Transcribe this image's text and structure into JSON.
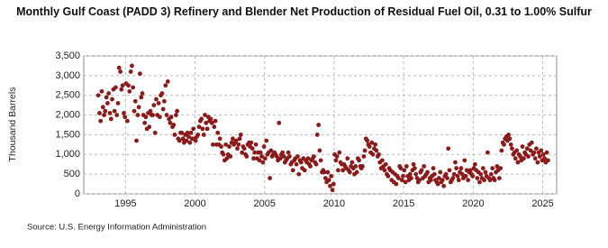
{
  "chart_data": {
    "type": "scatter",
    "title": "Monthly Gulf Coast (PADD 3) Refinery and Blender Net Production of Residual Fuel Oil, 0.31 to 1.00% Sulfur",
    "y_label": "Thousand Barrels",
    "source": "Source: U.S. Energy Information Administration",
    "color": "#8b1a1a",
    "grid": true,
    "xlim": [
      1992,
      2026
    ],
    "ylim": [
      0,
      3500
    ],
    "xticks": [
      1995,
      2000,
      2005,
      2010,
      2015,
      2020,
      2025
    ],
    "yticks": [
      0,
      500,
      {
        "value": 1000,
        "label": "1,000"
      },
      {
        "value": 1500,
        "label": "1,500"
      },
      {
        "value": 2000,
        "label": "2,000"
      },
      {
        "value": 2500,
        "label": "2,500"
      },
      {
        "value": 3000,
        "label": "3,000"
      },
      {
        "value": 3500,
        "label": "3,500"
      }
    ],
    "x": [
      1993.04,
      1993.13,
      1993.21,
      1993.29,
      1993.38,
      1993.46,
      1993.54,
      1993.63,
      1993.71,
      1993.79,
      1993.88,
      1993.96,
      1994.04,
      1994.13,
      1994.21,
      1994.29,
      1994.38,
      1994.46,
      1994.54,
      1994.63,
      1994.71,
      1994.79,
      1994.88,
      1994.96,
      1995.04,
      1995.13,
      1995.21,
      1995.29,
      1995.38,
      1995.46,
      1995.54,
      1995.63,
      1995.71,
      1995.79,
      1995.88,
      1995.96,
      1996.04,
      1996.13,
      1996.21,
      1996.29,
      1996.38,
      1996.46,
      1996.54,
      1996.63,
      1996.71,
      1996.79,
      1996.88,
      1996.96,
      1997.04,
      1997.13,
      1997.21,
      1997.29,
      1997.38,
      1997.46,
      1997.54,
      1997.63,
      1997.71,
      1997.79,
      1997.88,
      1997.96,
      1998.04,
      1998.13,
      1998.21,
      1998.29,
      1998.38,
      1998.46,
      1998.54,
      1998.63,
      1998.71,
      1998.79,
      1998.88,
      1998.96,
      1999.04,
      1999.13,
      1999.21,
      1999.29,
      1999.38,
      1999.46,
      1999.54,
      1999.63,
      1999.71,
      1999.79,
      1999.88,
      1999.96,
      2000.04,
      2000.13,
      2000.21,
      2000.29,
      2000.38,
      2000.46,
      2000.54,
      2000.63,
      2000.71,
      2000.79,
      2000.88,
      2000.96,
      2001.04,
      2001.13,
      2001.21,
      2001.29,
      2001.38,
      2001.46,
      2001.54,
      2001.63,
      2001.71,
      2001.79,
      2001.88,
      2001.96,
      2002.04,
      2002.13,
      2002.21,
      2002.29,
      2002.38,
      2002.46,
      2002.54,
      2002.63,
      2002.71,
      2002.79,
      2002.88,
      2002.96,
      2003.04,
      2003.13,
      2003.21,
      2003.29,
      2003.38,
      2003.46,
      2003.54,
      2003.63,
      2003.71,
      2003.79,
      2003.88,
      2003.96,
      2004.04,
      2004.13,
      2004.21,
      2004.29,
      2004.38,
      2004.46,
      2004.54,
      2004.63,
      2004.71,
      2004.79,
      2004.88,
      2004.96,
      2005.04,
      2005.13,
      2005.21,
      2005.29,
      2005.38,
      2005.46,
      2005.54,
      2005.63,
      2005.71,
      2005.79,
      2005.88,
      2005.96,
      2006.04,
      2006.13,
      2006.21,
      2006.29,
      2006.38,
      2006.46,
      2006.54,
      2006.63,
      2006.71,
      2006.79,
      2006.88,
      2006.96,
      2007.04,
      2007.13,
      2007.21,
      2007.29,
      2007.38,
      2007.46,
      2007.54,
      2007.63,
      2007.71,
      2007.79,
      2007.88,
      2007.96,
      2008.04,
      2008.13,
      2008.21,
      2008.29,
      2008.38,
      2008.46,
      2008.54,
      2008.63,
      2008.71,
      2008.79,
      2008.88,
      2008.96,
      2009.04,
      2009.13,
      2009.21,
      2009.29,
      2009.38,
      2009.46,
      2009.54,
      2009.63,
      2009.71,
      2009.79,
      2009.88,
      2009.96,
      2010.04,
      2010.13,
      2010.21,
      2010.29,
      2010.38,
      2010.46,
      2010.54,
      2010.63,
      2010.71,
      2010.79,
      2010.88,
      2010.96,
      2011.04,
      2011.13,
      2011.21,
      2011.29,
      2011.38,
      2011.46,
      2011.54,
      2011.63,
      2011.71,
      2011.79,
      2011.88,
      2011.96,
      2012.04,
      2012.13,
      2012.21,
      2012.29,
      2012.38,
      2012.46,
      2012.54,
      2012.63,
      2012.71,
      2012.79,
      2012.88,
      2012.96,
      2013.04,
      2013.13,
      2013.21,
      2013.29,
      2013.38,
      2013.46,
      2013.54,
      2013.63,
      2013.71,
      2013.79,
      2013.88,
      2013.96,
      2014.04,
      2014.13,
      2014.21,
      2014.29,
      2014.38,
      2014.46,
      2014.54,
      2014.63,
      2014.71,
      2014.79,
      2014.88,
      2014.96,
      2015.04,
      2015.13,
      2015.21,
      2015.29,
      2015.38,
      2015.46,
      2015.54,
      2015.63,
      2015.71,
      2015.79,
      2015.88,
      2015.96,
      2016.04,
      2016.13,
      2016.21,
      2016.29,
      2016.38,
      2016.46,
      2016.54,
      2016.63,
      2016.71,
      2016.79,
      2016.88,
      2016.96,
      2017.04,
      2017.13,
      2017.21,
      2017.29,
      2017.38,
      2017.46,
      2017.54,
      2017.63,
      2017.71,
      2017.79,
      2017.88,
      2017.96,
      2018.04,
      2018.13,
      2018.21,
      2018.29,
      2018.38,
      2018.46,
      2018.54,
      2018.63,
      2018.71,
      2018.79,
      2018.88,
      2018.96,
      2019.04,
      2019.13,
      2019.21,
      2019.29,
      2019.38,
      2019.46,
      2019.54,
      2019.63,
      2019.71,
      2019.79,
      2019.88,
      2019.96,
      2020.04,
      2020.13,
      2020.21,
      2020.29,
      2020.38,
      2020.46,
      2020.54,
      2020.63,
      2020.71,
      2020.79,
      2020.88,
      2020.96,
      2021.04,
      2021.13,
      2021.21,
      2021.29,
      2021.38,
      2021.46,
      2021.54,
      2021.63,
      2021.71,
      2021.79,
      2021.88,
      2021.96,
      2022.04,
      2022.13,
      2022.21,
      2022.29,
      2022.38,
      2022.46,
      2022.54,
      2022.63,
      2022.71,
      2022.79,
      2022.88,
      2022.96,
      2023.04,
      2023.13,
      2023.21,
      2023.29,
      2023.38,
      2023.46,
      2023.54,
      2023.63,
      2023.71,
      2023.79,
      2023.88,
      2023.96,
      2024.04,
      2024.13,
      2024.21,
      2024.29,
      2024.38,
      2024.46,
      2024.54,
      2024.63,
      2024.71,
      2024.79,
      2024.88,
      2024.96,
      2025.04,
      2025.13,
      2025.21,
      2025.29,
      2025.38
    ],
    "values": [
      2500,
      2050,
      1850,
      2600,
      2200,
      2000,
      2100,
      2450,
      2300,
      2550,
      2050,
      1900,
      2400,
      2650,
      2100,
      2700,
      2000,
      2300,
      3200,
      3100,
      2650,
      2750,
      2050,
      1950,
      2800,
      1850,
      2750,
      2600,
      3100,
      3250,
      2700,
      2100,
      2350,
      1350,
      2000,
      2200,
      3050,
      2450,
      2550,
      2000,
      1800,
      1950,
      1650,
      2050,
      1700,
      2100,
      2000,
      2000,
      2250,
      1550,
      2400,
      2000,
      2300,
      1950,
      2500,
      2550,
      2150,
      2350,
      2750,
      2000,
      2850,
      1900,
      1800,
      1950,
      1700,
      1750,
      1500,
      2000,
      2100,
      1400,
      1350,
      1550,
      1550,
      1400,
      1300,
      1500,
      1350,
      1550,
      1450,
      1300,
      1550,
      1400,
      1650,
      1400,
      1350,
      1450,
      1500,
      1700,
      1850,
      1900,
      1650,
      1500,
      2000,
      1800,
      1650,
      1950,
      1850,
      1900,
      1800,
      1250,
      1700,
      1850,
      1250,
      1550,
      1250,
      1400,
      1200,
      1050,
      1000,
      850,
      1250,
      900,
      1000,
      1200,
      950,
      1300,
      1400,
      1250,
      1300,
      1350,
      1150,
      1250,
      1400,
      1500,
      1050,
      1200,
      1150,
      1000,
      950,
      1250,
      1300,
      1200,
      1300,
      1150,
      900,
      1050,
      1250,
      900,
      1050,
      850,
      1050,
      950,
      800,
      1200,
      900,
      1350,
      1000,
      1050,
      400,
      1100,
      950,
      1000,
      1050,
      1000,
      950,
      850,
      1800,
      900,
      1000,
      1050,
      950,
      800,
      850,
      900,
      1050,
      950,
      750,
      800,
      600,
      850,
      900,
      750,
      950,
      500,
      850,
      800,
      650,
      900,
      600,
      850,
      800,
      900,
      750,
      700,
      850,
      900,
      950,
      800,
      750,
      1500,
      1750,
      1100,
      850,
      550,
      600,
      550,
      400,
      300,
      550,
      350,
      200,
      450,
      100,
      250,
      1000,
      850,
      950,
      600,
      1050,
      800,
      750,
      600,
      750,
      700,
      650,
      900,
      600,
      550,
      700,
      800,
      650,
      500,
      700,
      550,
      900,
      850,
      700,
      650,
      700,
      950,
      1100,
      1400,
      1350,
      1250,
      1200,
      1050,
      1300,
      1000,
      1150,
      1250,
      1100,
      950,
      1000,
      800,
      650,
      850,
      700,
      600,
      750,
      500,
      450,
      650,
      600,
      350,
      550,
      300,
      500,
      250,
      450,
      400,
      700,
      650,
      350,
      450,
      600,
      300,
      700,
      450,
      350,
      500,
      400,
      600,
      750,
      650,
      500,
      400,
      300,
      350,
      550,
      600,
      400,
      700,
      450,
      500,
      550,
      300,
      400,
      350,
      450,
      650,
      500,
      350,
      300,
      250,
      400,
      550,
      300,
      350,
      200,
      450,
      500,
      400,
      1150,
      600,
      300,
      350,
      400,
      500,
      800,
      650,
      450,
      350,
      550,
      650,
      500,
      400,
      850,
      450,
      600,
      350,
      550,
      600,
      500,
      450,
      650,
      750,
      600,
      400,
      550,
      300,
      500,
      400,
      650,
      350,
      550,
      450,
      1050,
      400,
      350,
      500,
      650,
      400,
      350,
      550,
      700,
      600,
      400,
      650,
      1100,
      1300,
      1250,
      1400,
      1450,
      1350,
      1500,
      1400,
      1250,
      1150,
      1000,
      1050,
      900,
      1100,
      800,
      1000,
      950,
      850,
      1200,
      900,
      1050,
      1000,
      1150,
      950,
      1250,
      1100,
      1300,
      1000,
      1050,
      900,
      1150,
      800,
      1050,
      950,
      1100,
      850,
      1000,
      900,
      800,
      1050,
      850
    ]
  }
}
